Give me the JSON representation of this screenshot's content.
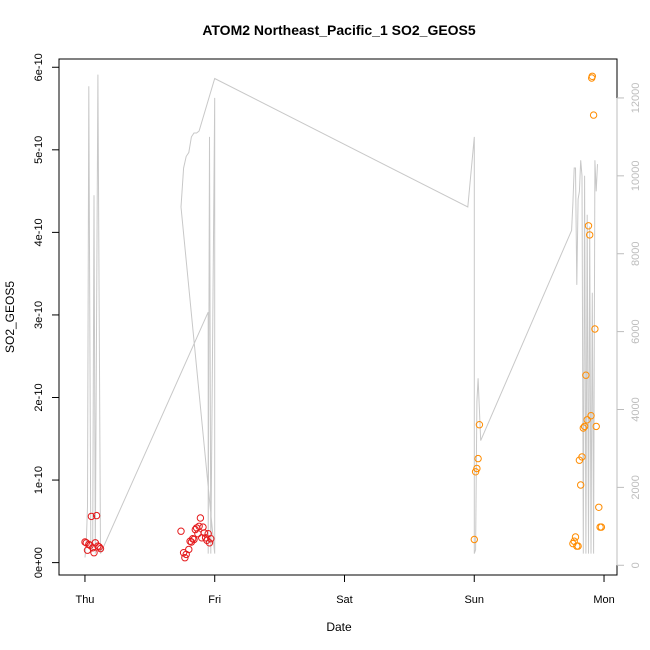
{
  "chart_data": {
    "type": "scatter",
    "title": "ATOM2 Northeast_Pacific_1 SO2_GEOS5",
    "xlabel": "Date",
    "ylabel": "SO2_GEOS5",
    "x_ticks": [
      "Thu",
      "Fri",
      "Sat",
      "Sun",
      "Mon"
    ],
    "y_ticks": [
      "0e+00",
      "1e-10",
      "2e-10",
      "3e-10",
      "4e-10",
      "5e-10",
      "6e-10"
    ],
    "y_right_ticks": [
      "0",
      "2000",
      "4000",
      "6000",
      "8000",
      "10000",
      "12000"
    ],
    "xlim_days": [
      -0.2,
      4.1
    ],
    "ylim": [
      -1.5e-11,
      6.1e-10
    ],
    "y2lim": [
      -250,
      13000
    ],
    "grid": false,
    "colors": {
      "series_1": "#e41a1c",
      "series_2": "#ff8c00",
      "altitude": "#c8c8c8"
    },
    "series": [
      {
        "color": "#e41a1c",
        "marker": "open-circle",
        "points": [
          [
            0.0,
            2.5e-11
          ],
          [
            0.01,
            2.4e-11
          ],
          [
            0.02,
            1.5e-11
          ],
          [
            0.03,
            2.2e-11
          ],
          [
            0.04,
            2.1e-11
          ],
          [
            0.05,
            5.6e-11
          ],
          [
            0.06,
            1.8e-11
          ],
          [
            0.07,
            1.2e-11
          ],
          [
            0.08,
            2.4e-11
          ],
          [
            0.09,
            5.7e-11
          ],
          [
            0.1,
            2e-11
          ],
          [
            0.11,
            1.9e-11
          ],
          [
            0.12,
            1.7e-11
          ],
          [
            0.74,
            3.8e-11
          ],
          [
            0.76,
            1.2e-11
          ],
          [
            0.77,
            6e-12
          ],
          [
            0.78,
            1e-11
          ],
          [
            0.8,
            1.6e-11
          ],
          [
            0.81,
            2.6e-11
          ],
          [
            0.82,
            2.5e-11
          ],
          [
            0.83,
            2.9e-11
          ],
          [
            0.84,
            2.8e-11
          ],
          [
            0.85,
            4e-11
          ],
          [
            0.86,
            4.2e-11
          ],
          [
            0.87,
            3.5e-11
          ],
          [
            0.88,
            4.4e-11
          ],
          [
            0.89,
            5.4e-11
          ],
          [
            0.9,
            3e-11
          ],
          [
            0.91,
            4.3e-11
          ],
          [
            0.92,
            3.6e-11
          ],
          [
            0.93,
            3e-11
          ],
          [
            0.94,
            2.7e-11
          ],
          [
            0.95,
            3.5e-11
          ],
          [
            0.96,
            2.4e-11
          ],
          [
            0.97,
            2.9e-11
          ]
        ]
      },
      {
        "color": "#ff8c00",
        "marker": "open-circle",
        "points": [
          [
            3.0,
            2.8e-11
          ],
          [
            3.01,
            1.1e-10
          ],
          [
            3.02,
            1.14e-10
          ],
          [
            3.03,
            1.26e-10
          ],
          [
            3.04,
            1.67e-10
          ],
          [
            3.76,
            2.3e-11
          ],
          [
            3.77,
            2.6e-11
          ],
          [
            3.78,
            3.1e-11
          ],
          [
            3.79,
            2e-11
          ],
          [
            3.8,
            2e-11
          ],
          [
            3.81,
            1.24e-10
          ],
          [
            3.82,
            9.4e-11
          ],
          [
            3.83,
            1.28e-10
          ],
          [
            3.84,
            1.63e-10
          ],
          [
            3.85,
            1.65e-10
          ],
          [
            3.86,
            2.27e-10
          ],
          [
            3.87,
            1.73e-10
          ],
          [
            3.88,
            4.08e-10
          ],
          [
            3.89,
            3.97e-10
          ],
          [
            3.9,
            1.78e-10
          ],
          [
            3.905,
            5.87e-10
          ],
          [
            3.91,
            5.89e-10
          ],
          [
            3.92,
            5.42e-10
          ],
          [
            3.93,
            2.83e-10
          ],
          [
            3.94,
            1.65e-10
          ],
          [
            3.96,
            6.7e-11
          ],
          [
            3.97,
            4.3e-11
          ],
          [
            3.98,
            4.3e-11
          ]
        ]
      }
    ],
    "altitude_line": [
      [
        0.0,
        200
      ],
      [
        0.01,
        600
      ],
      [
        0.02,
        1500
      ],
      [
        0.03,
        12300
      ],
      [
        0.045,
        400
      ],
      [
        0.06,
        400
      ],
      [
        0.07,
        9500
      ],
      [
        0.08,
        300
      ],
      [
        0.1,
        12600
      ],
      [
        0.12,
        300
      ],
      [
        0.95,
        6500
      ],
      [
        0.95,
        300
      ],
      [
        0.96,
        11000
      ],
      [
        0.97,
        300
      ],
      [
        1.0,
        12000
      ],
      [
        1.0,
        300
      ],
      [
        0.74,
        9200
      ],
      [
        0.76,
        10200
      ],
      [
        0.78,
        10500
      ],
      [
        0.8,
        10600
      ],
      [
        0.82,
        11000
      ],
      [
        0.84,
        11100
      ],
      [
        0.86,
        11100
      ],
      [
        0.88,
        11150
      ],
      [
        1.0,
        12500
      ],
      [
        2.95,
        9200
      ],
      [
        3.0,
        11000
      ],
      [
        3.0,
        300
      ],
      [
        3.01,
        400
      ],
      [
        3.02,
        4200
      ],
      [
        3.03,
        4800
      ],
      [
        3.04,
        4000
      ],
      [
        3.05,
        3200
      ],
      [
        3.75,
        8600
      ],
      [
        3.76,
        9300
      ],
      [
        3.77,
        10200
      ],
      [
        3.78,
        10200
      ],
      [
        3.79,
        7200
      ],
      [
        3.8,
        9400
      ],
      [
        3.81,
        9600
      ],
      [
        3.82,
        10400
      ],
      [
        3.83,
        10000
      ],
      [
        3.84,
        300
      ],
      [
        3.85,
        10000
      ],
      [
        3.86,
        300
      ],
      [
        3.87,
        9000
      ],
      [
        3.88,
        300
      ],
      [
        3.89,
        8700
      ],
      [
        3.9,
        300
      ],
      [
        3.91,
        7000
      ],
      [
        3.92,
        300
      ],
      [
        3.93,
        10400
      ],
      [
        3.94,
        9600
      ],
      [
        3.95,
        10300
      ]
    ]
  }
}
